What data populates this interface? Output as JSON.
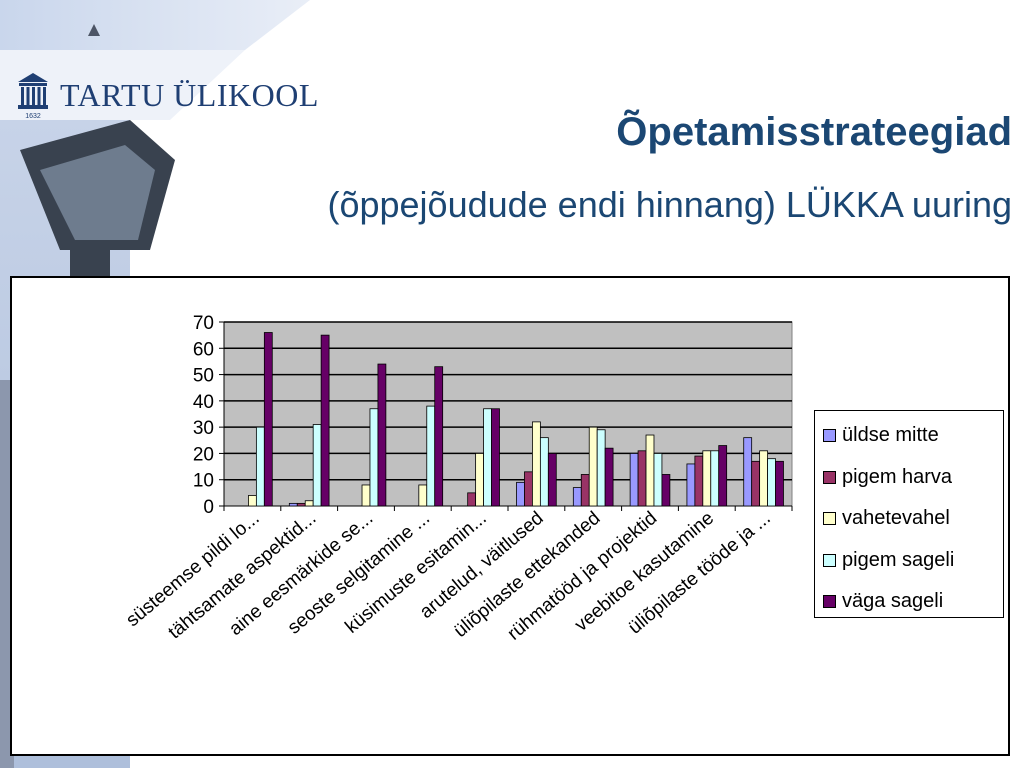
{
  "header": {
    "logo_text": "TARTU ÜLIKOOL",
    "logo_year": "1632",
    "title": "Õpetamisstrateegiad",
    "subtitle": "(õppejõudude endi hinnang) LÜKKA uuring"
  },
  "colors": {
    "title": "#1b4773",
    "plot_background": "#c0c0c0"
  },
  "chart_data": {
    "type": "bar",
    "title": "",
    "xlabel": "",
    "ylabel": "",
    "ylim": [
      0,
      70
    ],
    "yticks": [
      0,
      10,
      20,
      30,
      40,
      50,
      60,
      70
    ],
    "grid": true,
    "legend_position": "right",
    "categories": [
      "süsteemse pildi lo...",
      "tähtsamate aspektid...",
      "aine eesmärkide se...",
      "seoste selgitamine ...",
      "küsimuste esitamin...",
      "arutelud, väitlused",
      "üliõpilaste ettekanded",
      "rühmatööd ja projektid",
      "veebitoe kasutamine",
      "üliõpilaste tööde ja ..."
    ],
    "series": [
      {
        "name": "üldse mitte",
        "color": "#9999ff",
        "values": [
          0,
          1,
          0,
          0,
          0,
          9,
          7,
          20,
          16,
          26
        ]
      },
      {
        "name": "pigem harva",
        "color": "#993366",
        "values": [
          0,
          1,
          0,
          0,
          5,
          13,
          12,
          21,
          19,
          17
        ]
      },
      {
        "name": "vahetevahel",
        "color": "#ffffcc",
        "values": [
          4,
          2,
          8,
          8,
          20,
          32,
          30,
          27,
          21,
          21
        ]
      },
      {
        "name": "pigem sageli",
        "color": "#ccffff",
        "values": [
          30,
          31,
          37,
          38,
          37,
          26,
          29,
          20,
          21,
          18
        ]
      },
      {
        "name": "väga sageli",
        "color": "#660066",
        "values": [
          66,
          65,
          54,
          53,
          37,
          20,
          22,
          12,
          23,
          17
        ]
      }
    ]
  }
}
